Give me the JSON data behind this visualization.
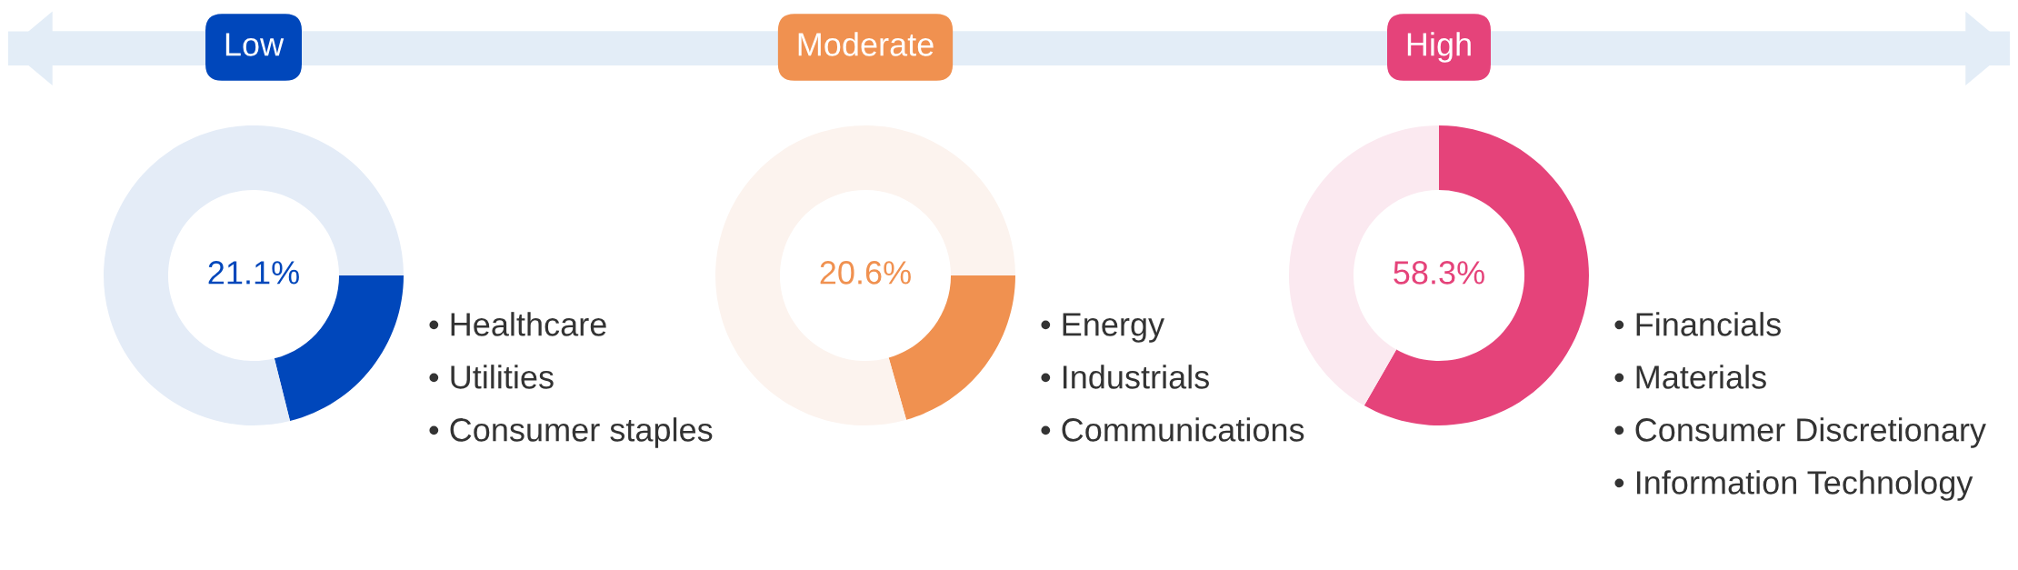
{
  "chart_data": [
    {
      "type": "donut",
      "title": "Low",
      "categories": [
        null,
        null
      ],
      "values": [
        21.1,
        78.9
      ],
      "colors": [
        "#0047bb",
        "#e4ecf7"
      ],
      "annotations": [
        "21.1%",
        "• Healthcare",
        "• Utilities",
        "• Consumer staples"
      ]
    },
    {
      "type": "donut",
      "title": "Moderate",
      "categories": [
        null,
        null
      ],
      "values": [
        20.6,
        79.4
      ],
      "colors": [
        "#f09150",
        "#fcf3ee"
      ],
      "annotations": [
        "20.6%",
        "• Energy",
        "• Industrials",
        "• Communications"
      ]
    },
    {
      "type": "donut",
      "title": "High",
      "categories": [
        null,
        null
      ],
      "values": [
        58.3,
        41.7
      ],
      "colors": [
        "#e5437a",
        "#fbe9f0"
      ],
      "annotations": [
        "58.3%",
        "• Financials",
        "• Materials",
        "• Consumer Discretionary",
        "• Information Technology"
      ]
    }
  ]
}
